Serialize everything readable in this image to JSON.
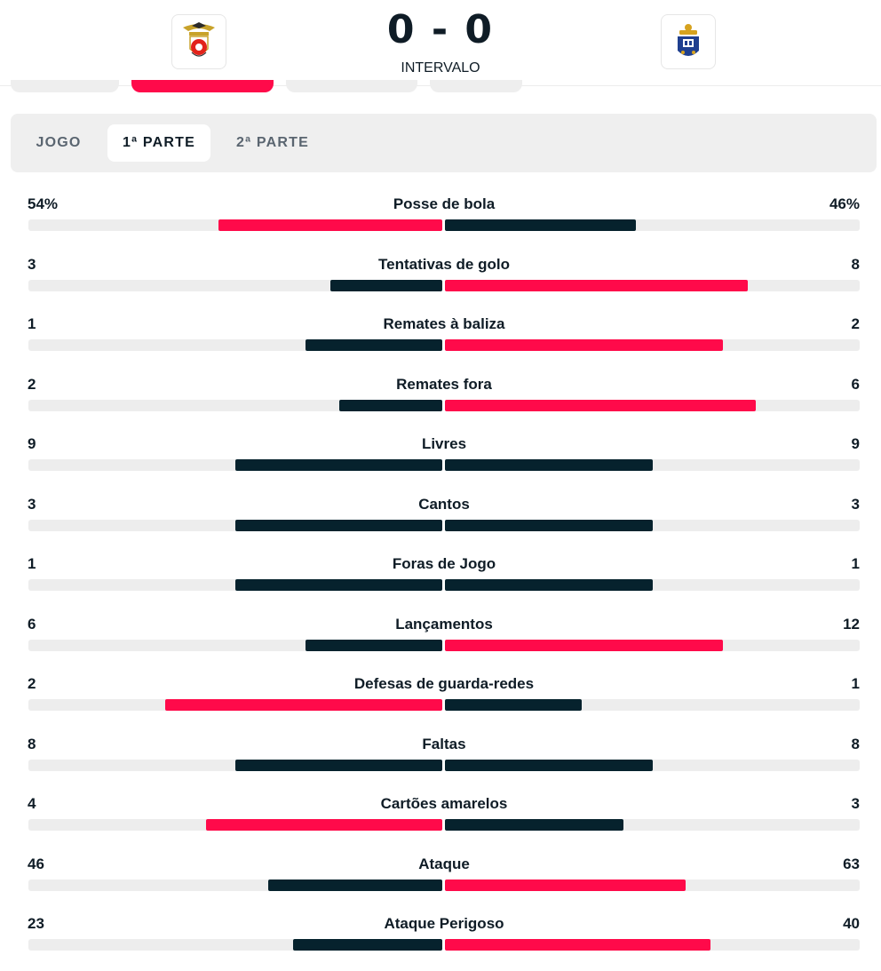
{
  "match": {
    "home_crest": "benfica-crest",
    "away_crest": "porto-crest",
    "score": "0 - 0",
    "status": "INTERVALO"
  },
  "colors": {
    "accent": "#ff0a4a",
    "dark": "#06222d",
    "track": "#ededed"
  },
  "period_tabs": [
    {
      "label": "JOGO",
      "active": false
    },
    {
      "label": "1ª PARTE",
      "active": true
    },
    {
      "label": "2ª PARTE",
      "active": false
    }
  ],
  "stats": [
    {
      "label": "Posse de bola",
      "home": "54%",
      "away": "46%",
      "home_frac": 0.54,
      "away_frac": 0.46,
      "home_color": "#ff0a4a",
      "away_color": "#06222d"
    },
    {
      "label": "Tentativas de golo",
      "home": "3",
      "away": "8",
      "home_frac": 0.27,
      "away_frac": 0.73,
      "home_color": "#06222d",
      "away_color": "#ff0a4a"
    },
    {
      "label": "Remates à baliza",
      "home": "1",
      "away": "2",
      "home_frac": 0.33,
      "away_frac": 0.67,
      "home_color": "#06222d",
      "away_color": "#ff0a4a"
    },
    {
      "label": "Remates fora",
      "home": "2",
      "away": "6",
      "home_frac": 0.25,
      "away_frac": 0.75,
      "home_color": "#06222d",
      "away_color": "#ff0a4a"
    },
    {
      "label": "Livres",
      "home": "9",
      "away": "9",
      "home_frac": 0.5,
      "away_frac": 0.5,
      "home_color": "#06222d",
      "away_color": "#06222d"
    },
    {
      "label": "Cantos",
      "home": "3",
      "away": "3",
      "home_frac": 0.5,
      "away_frac": 0.5,
      "home_color": "#06222d",
      "away_color": "#06222d"
    },
    {
      "label": "Foras de Jogo",
      "home": "1",
      "away": "1",
      "home_frac": 0.5,
      "away_frac": 0.5,
      "home_color": "#06222d",
      "away_color": "#06222d"
    },
    {
      "label": "Lançamentos",
      "home": "6",
      "away": "12",
      "home_frac": 0.33,
      "away_frac": 0.67,
      "home_color": "#06222d",
      "away_color": "#ff0a4a"
    },
    {
      "label": "Defesas de guarda-redes",
      "home": "2",
      "away": "1",
      "home_frac": 0.67,
      "away_frac": 0.33,
      "home_color": "#ff0a4a",
      "away_color": "#06222d"
    },
    {
      "label": "Faltas",
      "home": "8",
      "away": "8",
      "home_frac": 0.5,
      "away_frac": 0.5,
      "home_color": "#06222d",
      "away_color": "#06222d"
    },
    {
      "label": "Cartões amarelos",
      "home": "4",
      "away": "3",
      "home_frac": 0.57,
      "away_frac": 0.43,
      "home_color": "#ff0a4a",
      "away_color": "#06222d"
    },
    {
      "label": "Ataque",
      "home": "46",
      "away": "63",
      "home_frac": 0.42,
      "away_frac": 0.58,
      "home_color": "#06222d",
      "away_color": "#ff0a4a"
    },
    {
      "label": "Ataque Perigoso",
      "home": "23",
      "away": "40",
      "home_frac": 0.36,
      "away_frac": 0.64,
      "home_color": "#06222d",
      "away_color": "#ff0a4a"
    }
  ]
}
